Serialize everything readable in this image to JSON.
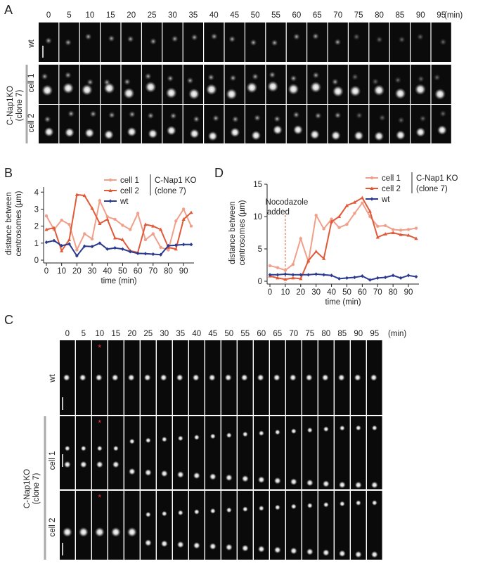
{
  "panel_labels": [
    "A",
    "B",
    "C",
    "D"
  ],
  "time_unit": "(min)",
  "time_points": [
    "0",
    "5",
    "10",
    "15",
    "20",
    "25",
    "30",
    "35",
    "40",
    "45",
    "50",
    "55",
    "60",
    "65",
    "70",
    "75",
    "80",
    "85",
    "90",
    "95"
  ],
  "row_labels": {
    "wt": "wt",
    "cell1": "cell 1",
    "cell2": "cell 2"
  },
  "group_label": [
    "C-Nap1KO",
    "(clone 7)"
  ],
  "nocodazole_marker": "*",
  "nocodazole_marker_color": "#e0303a",
  "colors": {
    "cell1": "#f0a08a",
    "cell2": "#e05a3a",
    "wt": "#2b3a8f"
  },
  "chart_data": [
    {
      "panel": "B",
      "type": "line",
      "xlabel": "time (min)",
      "ylabel": [
        "distance between",
        "centrosomes (µm)"
      ],
      "xlim": [
        0,
        95
      ],
      "ylim": [
        0,
        4.3
      ],
      "xticks": [
        "0",
        "10",
        "20",
        "30",
        "40",
        "50",
        "60",
        "70",
        "80",
        "90"
      ],
      "yticks": [
        "0",
        "1",
        "2",
        "3",
        "4"
      ],
      "legend_group": [
        "C-Nap1 KO",
        "(clone 7)"
      ],
      "legend_position": "top-right",
      "x": [
        0,
        5,
        10,
        15,
        20,
        25,
        30,
        35,
        40,
        45,
        50,
        55,
        60,
        65,
        70,
        75,
        80,
        85,
        90,
        95
      ],
      "series": [
        {
          "name": "cell 1",
          "marker": "circle",
          "color": "#f0a08a",
          "values": [
            2.6,
            1.8,
            2.35,
            2.1,
            0.6,
            1.55,
            1.25,
            3.5,
            2.55,
            2.4,
            2.05,
            1.8,
            2.75,
            1.2,
            1.55,
            0.75,
            0.6,
            2.3,
            3.0,
            2.0
          ]
        },
        {
          "name": "cell 2",
          "marker": "triangle",
          "color": "#e05a3a",
          "values": [
            1.8,
            1.9,
            0.55,
            1.2,
            3.85,
            3.8,
            3.05,
            2.15,
            2.4,
            1.3,
            1.2,
            0.55,
            0.45,
            2.1,
            2.0,
            1.8,
            0.75,
            0.65,
            2.4,
            2.8
          ]
        },
        {
          "name": "wt",
          "marker": "diamond",
          "color": "#2b3a8f",
          "values": [
            1.05,
            1.15,
            0.85,
            0.95,
            0.25,
            0.82,
            0.8,
            1.0,
            0.65,
            0.72,
            0.65,
            0.5,
            0.4,
            0.38,
            0.35,
            0.32,
            0.85,
            0.88,
            0.92,
            0.92
          ]
        }
      ]
    },
    {
      "panel": "D",
      "type": "line",
      "xlabel": "time (min)",
      "ylabel": [
        "distance between",
        "centrosomes (µm)"
      ],
      "xlim": [
        0,
        95
      ],
      "ylim": [
        0,
        15
      ],
      "xticks": [
        "0",
        "10",
        "20",
        "30",
        "40",
        "50",
        "60",
        "70",
        "80",
        "90"
      ],
      "yticks": [
        "0",
        "5",
        "10",
        "15"
      ],
      "legend_group": [
        "C-Nap1 KO",
        "(clone 7)"
      ],
      "legend_position": "top-right",
      "annotation": {
        "text": [
          "Nocodazole",
          "added"
        ],
        "x": 10
      },
      "x": [
        0,
        5,
        10,
        15,
        20,
        25,
        30,
        35,
        40,
        45,
        50,
        55,
        60,
        65,
        70,
        75,
        80,
        85,
        90,
        95
      ],
      "series": [
        {
          "name": "cell 1",
          "marker": "circle",
          "color": "#f0a08a",
          "values": [
            2.4,
            2.1,
            1.7,
            2.6,
            6.6,
            3.0,
            10.2,
            8.1,
            9.6,
            8.3,
            8.8,
            10.5,
            12.1,
            10.0,
            8.5,
            8.6,
            8.0,
            7.9,
            8.0,
            8.2
          ]
        },
        {
          "name": "cell 2",
          "marker": "triangle",
          "color": "#e05a3a",
          "values": [
            0.8,
            0.5,
            0.3,
            0.5,
            0.4,
            3.2,
            4.6,
            3.5,
            9.2,
            10.0,
            11.7,
            12.2,
            12.9,
            10.8,
            6.8,
            7.3,
            7.5,
            7.2,
            7.1,
            6.6
          ]
        },
        {
          "name": "wt",
          "marker": "diamond",
          "color": "#2b3a8f",
          "values": [
            1.0,
            1.0,
            1.1,
            1.0,
            1.0,
            1.0,
            1.1,
            1.0,
            0.9,
            0.4,
            0.5,
            0.6,
            0.8,
            0.2,
            0.5,
            0.6,
            0.9,
            0.5,
            0.9,
            0.7
          ]
        }
      ]
    }
  ]
}
